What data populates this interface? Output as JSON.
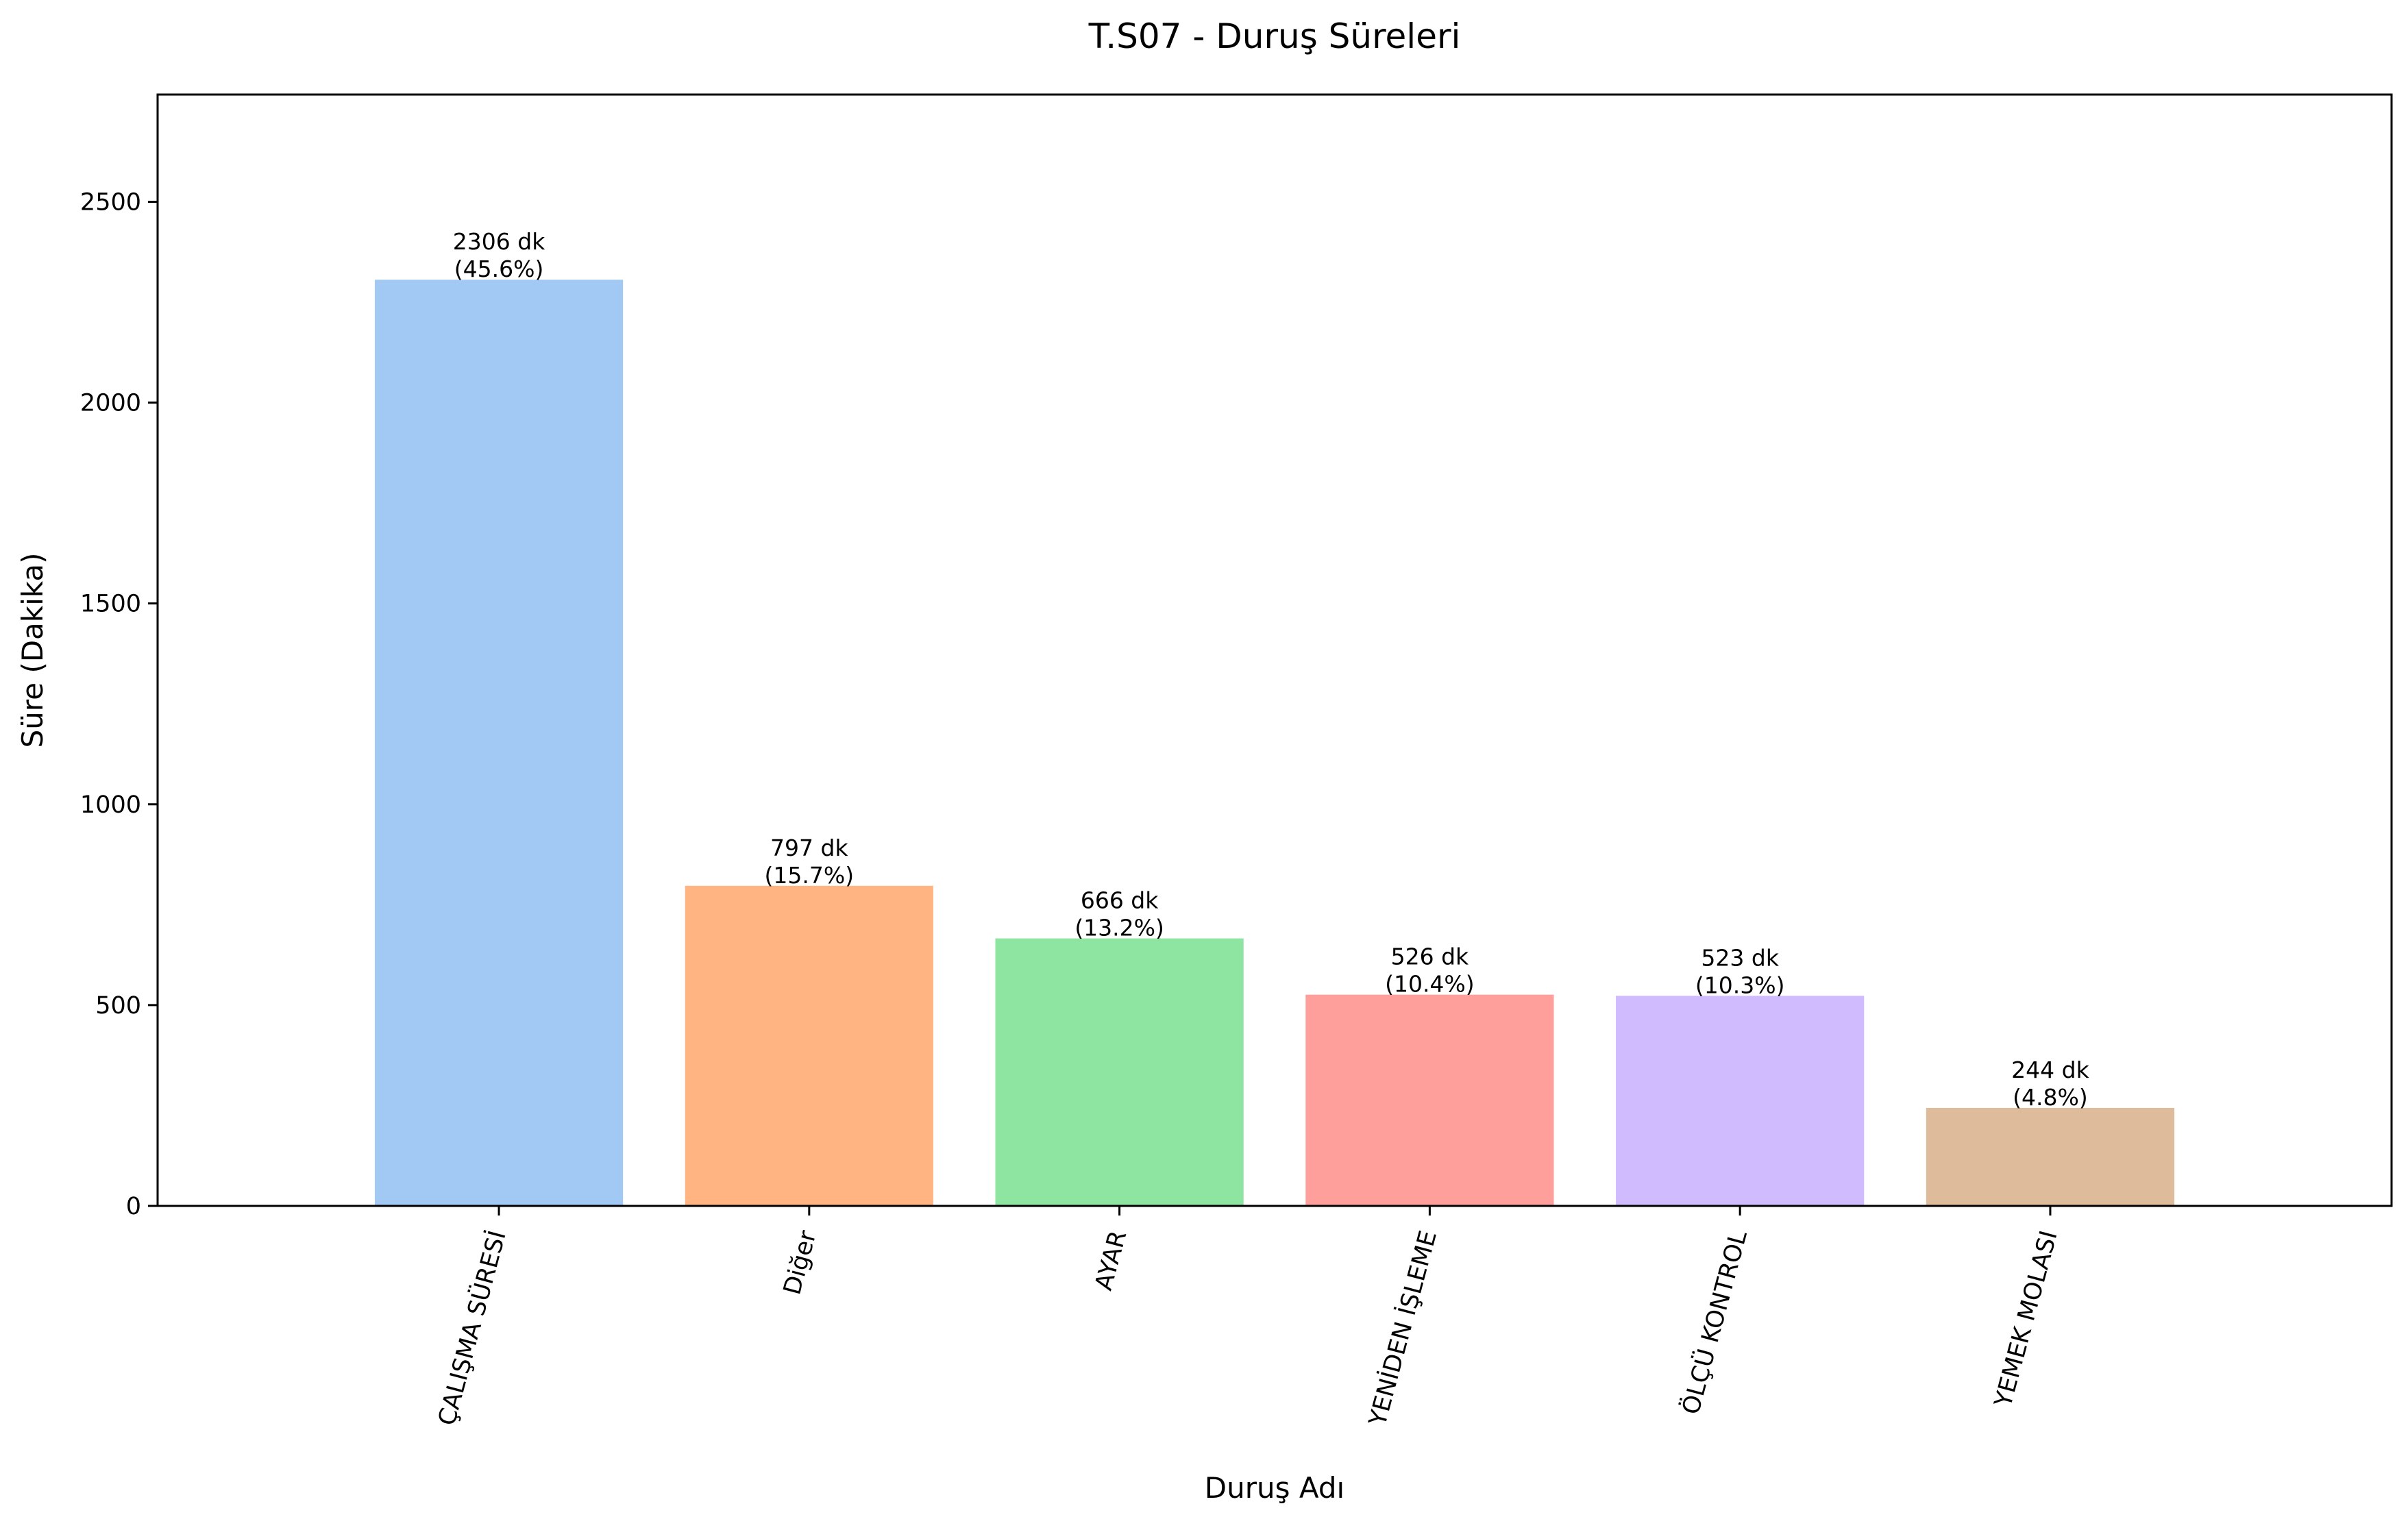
{
  "chart_data": {
    "type": "bar",
    "title": "T.S07 - Duruş Süreleri",
    "xlabel": "Duruş Adı",
    "ylabel": "Süre (Dakika)",
    "ylim": [
      0,
      2767
    ],
    "yticks": [
      0,
      500,
      1000,
      1500,
      2000,
      2500
    ],
    "grid": false,
    "legend": "none",
    "categories": [
      "ÇALIŞMA SÜRESİ",
      "Diğer",
      "AYAR",
      "YENİDEN İŞLEME",
      "ÖLÇÜ KONTROL",
      "YEMEK MOLASI"
    ],
    "values": [
      2306,
      797,
      666,
      526,
      523,
      244
    ],
    "bar_labels": [
      [
        "2306 dk",
        "(45.6%)"
      ],
      [
        "797 dk",
        "(15.7%)"
      ],
      [
        "666 dk",
        "(13.2%)"
      ],
      [
        "526 dk",
        "(10.4%)"
      ],
      [
        "523 dk",
        "(10.3%)"
      ],
      [
        "244 dk",
        "(4.8%)"
      ]
    ],
    "colors": [
      "#a1c9f4",
      "#ffb482",
      "#8de5a1",
      "#ff9f9b",
      "#d0bbff",
      "#debb9b"
    ]
  }
}
